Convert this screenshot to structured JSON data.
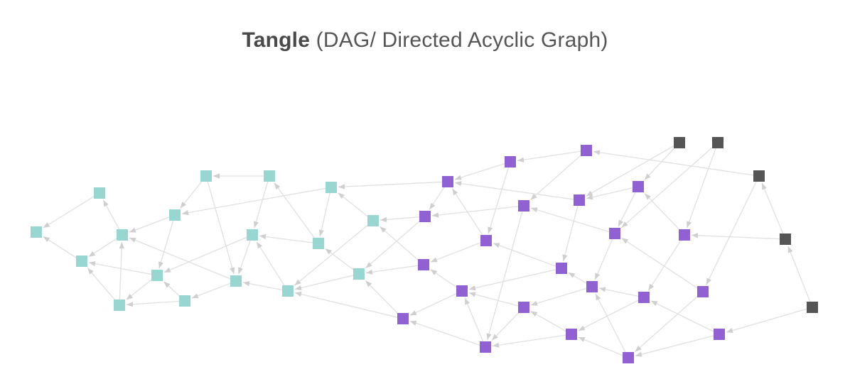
{
  "title": {
    "bold": "Tangle",
    "rest": " (DAG/ Directed Acyclic Graph)"
  },
  "colors": {
    "confirmed": "#98d6d2",
    "pending": "#9061d2",
    "tip": "#555555",
    "edge": "#e0e0e0",
    "arrow": "#cfcfcf"
  },
  "nodes": [
    {
      "id": "t1",
      "group": "confirmed"
    },
    {
      "id": "t2",
      "group": "confirmed"
    },
    {
      "id": "t3",
      "group": "confirmed"
    },
    {
      "id": "t4",
      "group": "confirmed"
    },
    {
      "id": "t5",
      "group": "confirmed"
    },
    {
      "id": "t6",
      "group": "confirmed"
    },
    {
      "id": "t7",
      "group": "confirmed"
    },
    {
      "id": "t8",
      "group": "confirmed"
    },
    {
      "id": "t9",
      "group": "confirmed"
    },
    {
      "id": "t10",
      "group": "confirmed"
    },
    {
      "id": "t11",
      "group": "confirmed"
    },
    {
      "id": "t12",
      "group": "confirmed"
    },
    {
      "id": "t13",
      "group": "confirmed"
    },
    {
      "id": "t14",
      "group": "confirmed"
    },
    {
      "id": "t15",
      "group": "confirmed"
    },
    {
      "id": "t16",
      "group": "confirmed"
    },
    {
      "id": "t17",
      "group": "confirmed"
    },
    {
      "id": "p1",
      "group": "pending"
    },
    {
      "id": "p2",
      "group": "pending"
    },
    {
      "id": "p3",
      "group": "pending"
    },
    {
      "id": "p4",
      "group": "pending"
    },
    {
      "id": "p5",
      "group": "pending"
    },
    {
      "id": "p6",
      "group": "pending"
    },
    {
      "id": "p7",
      "group": "pending"
    },
    {
      "id": "p8",
      "group": "pending"
    },
    {
      "id": "p9",
      "group": "pending"
    },
    {
      "id": "p10",
      "group": "pending"
    },
    {
      "id": "p11",
      "group": "pending"
    },
    {
      "id": "p12",
      "group": "pending"
    },
    {
      "id": "p13",
      "group": "pending"
    },
    {
      "id": "p14",
      "group": "pending"
    },
    {
      "id": "p15",
      "group": "pending"
    },
    {
      "id": "p16",
      "group": "pending"
    },
    {
      "id": "p17",
      "group": "pending"
    },
    {
      "id": "p18",
      "group": "pending"
    },
    {
      "id": "p19",
      "group": "pending"
    },
    {
      "id": "p20",
      "group": "pending"
    },
    {
      "id": "p21",
      "group": "pending"
    },
    {
      "id": "p22",
      "group": "pending"
    },
    {
      "id": "d1",
      "group": "tip"
    },
    {
      "id": "d2",
      "group": "tip"
    },
    {
      "id": "d3",
      "group": "tip"
    },
    {
      "id": "d4",
      "group": "tip"
    },
    {
      "id": "d5",
      "group": "tip"
    }
  ],
  "edges": [
    [
      "t2",
      "t1"
    ],
    [
      "t3",
      "t1"
    ],
    [
      "t4",
      "t2"
    ],
    [
      "t4",
      "t3"
    ],
    [
      "t5",
      "t3"
    ],
    [
      "t5",
      "t4"
    ],
    [
      "t6",
      "t3"
    ],
    [
      "t6",
      "t5"
    ],
    [
      "t7",
      "t5"
    ],
    [
      "t7",
      "t6"
    ],
    [
      "t8",
      "t4"
    ],
    [
      "t8",
      "t6"
    ],
    [
      "t9",
      "t8"
    ],
    [
      "t9",
      "t11"
    ],
    [
      "t10",
      "t9"
    ],
    [
      "t10",
      "t12"
    ],
    [
      "t11",
      "t4"
    ],
    [
      "t11",
      "t7"
    ],
    [
      "t12",
      "t6"
    ],
    [
      "t12",
      "t11"
    ],
    [
      "t13",
      "t11"
    ],
    [
      "t13",
      "t12"
    ],
    [
      "t14",
      "t10"
    ],
    [
      "t14",
      "t12"
    ],
    [
      "t15",
      "t8"
    ],
    [
      "t15",
      "t14"
    ],
    [
      "t16",
      "t13"
    ],
    [
      "t16",
      "t14"
    ],
    [
      "t17",
      "t13"
    ],
    [
      "t17",
      "t15"
    ],
    [
      "p1",
      "t15"
    ],
    [
      "p4",
      "t17"
    ],
    [
      "p4",
      "t16"
    ],
    [
      "p11",
      "t16"
    ],
    [
      "p11",
      "t17"
    ],
    [
      "p17",
      "t13"
    ],
    [
      "p17",
      "t16"
    ],
    [
      "p2",
      "p1"
    ],
    [
      "p3",
      "p2"
    ],
    [
      "p2",
      "p8"
    ],
    [
      "p1",
      "p4"
    ],
    [
      "p6",
      "p1"
    ],
    [
      "p7",
      "p6"
    ],
    [
      "p3",
      "p5"
    ],
    [
      "p5",
      "p20"
    ],
    [
      "p5",
      "p4"
    ],
    [
      "p9",
      "p5"
    ],
    [
      "p6",
      "p12"
    ],
    [
      "p9",
      "p14"
    ],
    [
      "p8",
      "p1"
    ],
    [
      "p8",
      "p11"
    ],
    [
      "p12",
      "p8"
    ],
    [
      "p12",
      "p13"
    ],
    [
      "p14",
      "p12"
    ],
    [
      "p13",
      "p11"
    ],
    [
      "p13",
      "p17"
    ],
    [
      "p18",
      "p13"
    ],
    [
      "p14",
      "p18"
    ],
    [
      "p15",
      "p14"
    ],
    [
      "p16",
      "p9"
    ],
    [
      "p10",
      "p15"
    ],
    [
      "p16",
      "p21"
    ],
    [
      "p19",
      "p18"
    ],
    [
      "p15",
      "p19"
    ],
    [
      "p19",
      "p20"
    ],
    [
      "p18",
      "p20"
    ],
    [
      "p20",
      "p13"
    ],
    [
      "p20",
      "p17"
    ],
    [
      "p21",
      "p19"
    ],
    [
      "p21",
      "p14"
    ],
    [
      "p22",
      "p15"
    ],
    [
      "p22",
      "p21"
    ],
    [
      "p7",
      "p9"
    ],
    [
      "p10",
      "p7"
    ],
    [
      "d1",
      "p6"
    ],
    [
      "d1",
      "p7"
    ],
    [
      "d2",
      "p9"
    ],
    [
      "d2",
      "p10"
    ],
    [
      "d3",
      "p3"
    ],
    [
      "d3",
      "p16"
    ],
    [
      "d4",
      "d3"
    ],
    [
      "d4",
      "p10"
    ],
    [
      "d5",
      "d4"
    ],
    [
      "d5",
      "p22"
    ]
  ]
}
